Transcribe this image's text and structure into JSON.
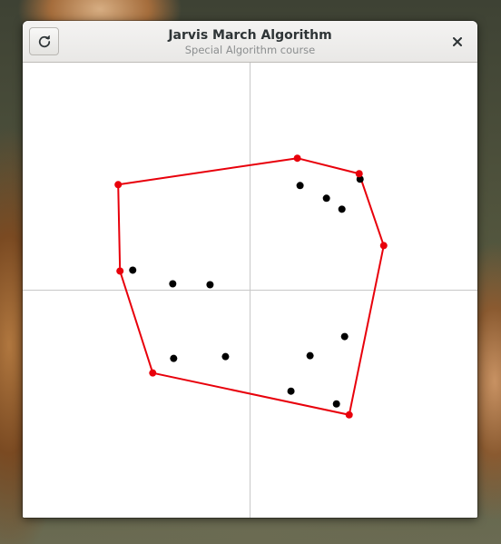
{
  "window": {
    "title": "Jarvis March Algorithm",
    "subtitle": "Special Algorithm course"
  },
  "toolbar": {
    "reload_icon": "reload-icon",
    "close_icon": "close-icon"
  },
  "colors": {
    "hull": "#e8000b",
    "point": "#000000",
    "axis": "#c8c8c8"
  },
  "chart_data": {
    "type": "scatter",
    "title": "",
    "xlim": [
      -250,
      250
    ],
    "ylim": [
      -250,
      250
    ],
    "axes_cross_at": [
      0,
      0
    ],
    "points": [
      {
        "x": 55,
        "y": 115
      },
      {
        "x": 84,
        "y": 101
      },
      {
        "x": 101,
        "y": 89
      },
      {
        "x": 121,
        "y": 122
      },
      {
        "x": -129,
        "y": 22
      },
      {
        "x": -85,
        "y": 7
      },
      {
        "x": -44,
        "y": 6
      },
      {
        "x": -84,
        "y": -75
      },
      {
        "x": -27,
        "y": -73
      },
      {
        "x": 66,
        "y": -72
      },
      {
        "x": 104,
        "y": -51
      },
      {
        "x": 45,
        "y": -111
      },
      {
        "x": 95,
        "y": -125
      }
    ],
    "hull": [
      {
        "x": -145,
        "y": 116
      },
      {
        "x": 52,
        "y": 145
      },
      {
        "x": 120,
        "y": 128
      },
      {
        "x": 147,
        "y": 49
      },
      {
        "x": 109,
        "y": -137
      },
      {
        "x": -107,
        "y": -91
      },
      {
        "x": -143,
        "y": 21
      }
    ]
  }
}
